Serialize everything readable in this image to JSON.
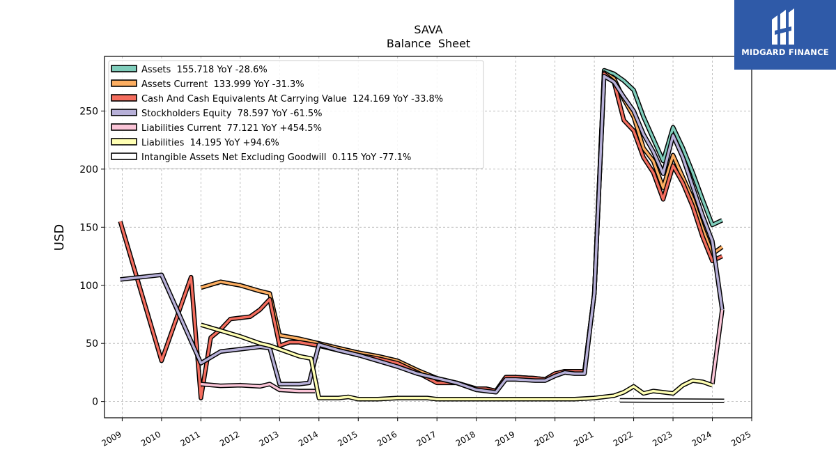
{
  "chart_data": {
    "type": "line",
    "title": "SAVA",
    "subtitle": "Balance  Sheet",
    "xlabel": "",
    "ylabel": "USD",
    "xlim": [
      2008.55,
      2025.0
    ],
    "ylim": [
      -14,
      297
    ],
    "x_ticks": [
      "2009",
      "2010",
      "2011",
      "2012",
      "2013",
      "2014",
      "2015",
      "2016",
      "2017",
      "2018",
      "2019",
      "2020",
      "2021",
      "2022",
      "2023",
      "2024",
      "2025"
    ],
    "y_ticks": [
      0,
      50,
      100,
      150,
      200,
      250
    ],
    "grid": true,
    "legend_position": "top-left",
    "series": [
      {
        "name": "Assets",
        "legend_label": "Assets  155.718 YoY -28.6%",
        "color": "#7fcdbb",
        "points": [
          [
            2021.0,
            93
          ],
          [
            2021.25,
            285
          ],
          [
            2021.5,
            282
          ],
          [
            2021.75,
            276
          ],
          [
            2022.0,
            268
          ],
          [
            2022.25,
            245
          ],
          [
            2022.5,
            226
          ],
          [
            2022.75,
            207
          ],
          [
            2023.0,
            236
          ],
          [
            2023.25,
            218
          ],
          [
            2023.5,
            197
          ],
          [
            2023.75,
            174
          ],
          [
            2024.0,
            152
          ],
          [
            2024.25,
            156
          ]
        ]
      },
      {
        "name": "Assets Current",
        "legend_label": "Assets Current  133.999 YoY -31.3%",
        "color": "#fdae61",
        "points": [
          [
            2011.0,
            98
          ],
          [
            2011.5,
            103
          ],
          [
            2012.0,
            100
          ],
          [
            2012.5,
            95
          ],
          [
            2012.75,
            93
          ],
          [
            2013.0,
            57
          ],
          [
            2013.5,
            54
          ],
          [
            2014.0,
            50
          ],
          [
            2014.5,
            46
          ],
          [
            2015.0,
            42
          ],
          [
            2015.5,
            39
          ],
          [
            2016.0,
            35
          ],
          [
            2016.5,
            27
          ],
          [
            2017.0,
            20
          ],
          [
            2017.5,
            16
          ],
          [
            2018.0,
            11
          ],
          [
            2018.25,
            11
          ],
          [
            2018.5,
            9
          ],
          [
            2018.75,
            21
          ],
          [
            2019.0,
            21
          ],
          [
            2019.5,
            20
          ],
          [
            2019.75,
            19
          ],
          [
            2020.0,
            24
          ],
          [
            2020.25,
            26
          ],
          [
            2020.5,
            26
          ],
          [
            2020.75,
            26
          ],
          [
            2021.0,
            93
          ],
          [
            2021.25,
            283
          ],
          [
            2021.5,
            278
          ],
          [
            2021.75,
            260
          ],
          [
            2022.0,
            245
          ],
          [
            2022.25,
            218
          ],
          [
            2022.5,
            207
          ],
          [
            2022.75,
            184
          ],
          [
            2023.0,
            212
          ],
          [
            2023.25,
            193
          ],
          [
            2023.5,
            174
          ],
          [
            2023.75,
            149
          ],
          [
            2024.0,
            127
          ],
          [
            2024.25,
            133
          ]
        ]
      },
      {
        "name": "Cash And Cash Equivalents At Carrying Value",
        "legend_label": "Cash And Cash Equivalents At Carrying Value  124.169 YoY -33.8%",
        "color": "#f46d5e",
        "points": [
          [
            2008.95,
            155
          ],
          [
            2010.0,
            35
          ],
          [
            2010.75,
            107
          ],
          [
            2011.0,
            3
          ],
          [
            2011.25,
            55
          ],
          [
            2011.5,
            62
          ],
          [
            2011.75,
            71
          ],
          [
            2012.0,
            72
          ],
          [
            2012.25,
            73
          ],
          [
            2012.5,
            79
          ],
          [
            2012.75,
            88
          ],
          [
            2013.0,
            48
          ],
          [
            2013.25,
            51
          ],
          [
            2013.5,
            51
          ],
          [
            2014.0,
            48
          ],
          [
            2014.5,
            44
          ],
          [
            2015.0,
            40
          ],
          [
            2015.5,
            37
          ],
          [
            2016.0,
            33
          ],
          [
            2016.5,
            25
          ],
          [
            2017.0,
            16
          ],
          [
            2017.5,
            16
          ],
          [
            2018.0,
            11
          ],
          [
            2018.25,
            11
          ],
          [
            2018.5,
            9
          ],
          [
            2018.75,
            21
          ],
          [
            2019.0,
            21
          ],
          [
            2019.5,
            20
          ],
          [
            2019.75,
            19
          ],
          [
            2020.0,
            24
          ],
          [
            2020.25,
            26
          ],
          [
            2020.5,
            26
          ],
          [
            2020.75,
            26
          ],
          [
            2021.0,
            93
          ],
          [
            2021.25,
            282
          ],
          [
            2021.5,
            275
          ],
          [
            2021.75,
            242
          ],
          [
            2022.0,
            233
          ],
          [
            2022.25,
            210
          ],
          [
            2022.5,
            197
          ],
          [
            2022.75,
            174
          ],
          [
            2023.0,
            203
          ],
          [
            2023.25,
            188
          ],
          [
            2023.5,
            168
          ],
          [
            2023.75,
            142
          ],
          [
            2024.0,
            121
          ],
          [
            2024.25,
            125
          ]
        ]
      },
      {
        "name": "Stockholders Equity",
        "legend_label": "Stockholders Equity  78.597 YoY -61.5%",
        "color": "#b7b0d8",
        "points": [
          [
            2008.95,
            105
          ],
          [
            2010.0,
            109
          ],
          [
            2011.0,
            33
          ],
          [
            2011.5,
            43
          ],
          [
            2012.0,
            45
          ],
          [
            2012.5,
            47
          ],
          [
            2012.75,
            46
          ],
          [
            2013.0,
            15
          ],
          [
            2013.5,
            15
          ],
          [
            2013.75,
            16
          ],
          [
            2014.0,
            49
          ],
          [
            2014.5,
            44
          ],
          [
            2015.0,
            40
          ],
          [
            2015.5,
            35
          ],
          [
            2016.0,
            30
          ],
          [
            2016.5,
            24
          ],
          [
            2017.0,
            20
          ],
          [
            2017.5,
            16
          ],
          [
            2018.0,
            10
          ],
          [
            2018.25,
            9
          ],
          [
            2018.5,
            8
          ],
          [
            2018.75,
            19
          ],
          [
            2019.0,
            19
          ],
          [
            2019.5,
            18
          ],
          [
            2019.75,
            18
          ],
          [
            2020.0,
            22
          ],
          [
            2020.25,
            25
          ],
          [
            2020.5,
            24
          ],
          [
            2020.75,
            24
          ],
          [
            2021.0,
            93
          ],
          [
            2021.25,
            280
          ],
          [
            2021.5,
            275
          ],
          [
            2021.75,
            262
          ],
          [
            2022.0,
            250
          ],
          [
            2022.25,
            230
          ],
          [
            2022.5,
            215
          ],
          [
            2022.75,
            196
          ],
          [
            2023.0,
            229
          ],
          [
            2023.25,
            210
          ],
          [
            2023.5,
            185
          ],
          [
            2023.75,
            160
          ],
          [
            2024.0,
            138
          ],
          [
            2024.25,
            79
          ]
        ]
      },
      {
        "name": "Liabilities Current",
        "legend_label": "Liabilities Current  77.121 YoY +454.5%",
        "color": "#fbc5d8",
        "points": [
          [
            2011.0,
            15
          ],
          [
            2011.5,
            13.5
          ],
          [
            2012.0,
            14
          ],
          [
            2012.5,
            13
          ],
          [
            2012.75,
            15
          ],
          [
            2013.0,
            10
          ],
          [
            2013.5,
            9
          ],
          [
            2013.9,
            9
          ]
        ]
      },
      {
        "name": "Liabilities Current (recent)",
        "legend_label": "",
        "color": "#fbc5d8",
        "points": [
          [
            2024.0,
            15
          ],
          [
            2024.25,
            79
          ]
        ]
      },
      {
        "name": "Liabilities",
        "legend_label": "Liabilities  14.195 YoY +94.6%",
        "color": "#ffffb3",
        "points": [
          [
            2011.0,
            66
          ],
          [
            2011.5,
            61
          ],
          [
            2012.0,
            56
          ],
          [
            2012.5,
            50
          ],
          [
            2012.75,
            48
          ],
          [
            2013.0,
            45
          ],
          [
            2013.5,
            39
          ],
          [
            2013.8,
            37
          ],
          [
            2014.0,
            3
          ],
          [
            2014.5,
            3
          ],
          [
            2014.75,
            4
          ],
          [
            2015.0,
            2
          ],
          [
            2015.5,
            2
          ],
          [
            2016.0,
            3
          ],
          [
            2016.25,
            3
          ],
          [
            2016.5,
            3
          ],
          [
            2016.75,
            3
          ],
          [
            2017.0,
            2
          ],
          [
            2017.5,
            2
          ],
          [
            2018.0,
            2
          ],
          [
            2018.5,
            2
          ],
          [
            2019.0,
            2
          ],
          [
            2019.5,
            2
          ],
          [
            2020.0,
            2
          ],
          [
            2020.5,
            2
          ],
          [
            2021.0,
            3
          ],
          [
            2021.25,
            4
          ],
          [
            2021.5,
            5
          ],
          [
            2021.75,
            8
          ],
          [
            2022.0,
            13
          ],
          [
            2022.25,
            7
          ],
          [
            2022.5,
            9
          ],
          [
            2022.75,
            8
          ],
          [
            2023.0,
            7
          ],
          [
            2023.25,
            14
          ],
          [
            2023.5,
            18
          ],
          [
            2023.75,
            17
          ],
          [
            2024.0,
            14
          ]
        ]
      },
      {
        "name": "Intangible Assets Net Excluding Goodwill",
        "legend_label": "Intangible Assets Net Excluding Goodwill  0.115 YoY -77.1%",
        "color": "#ffffff",
        "points": [
          [
            2021.65,
            1
          ],
          [
            2024.3,
            0.5
          ]
        ]
      }
    ]
  },
  "logo": {
    "text": "MIDGARD FINANCE",
    "background": "#2f5aa8"
  }
}
